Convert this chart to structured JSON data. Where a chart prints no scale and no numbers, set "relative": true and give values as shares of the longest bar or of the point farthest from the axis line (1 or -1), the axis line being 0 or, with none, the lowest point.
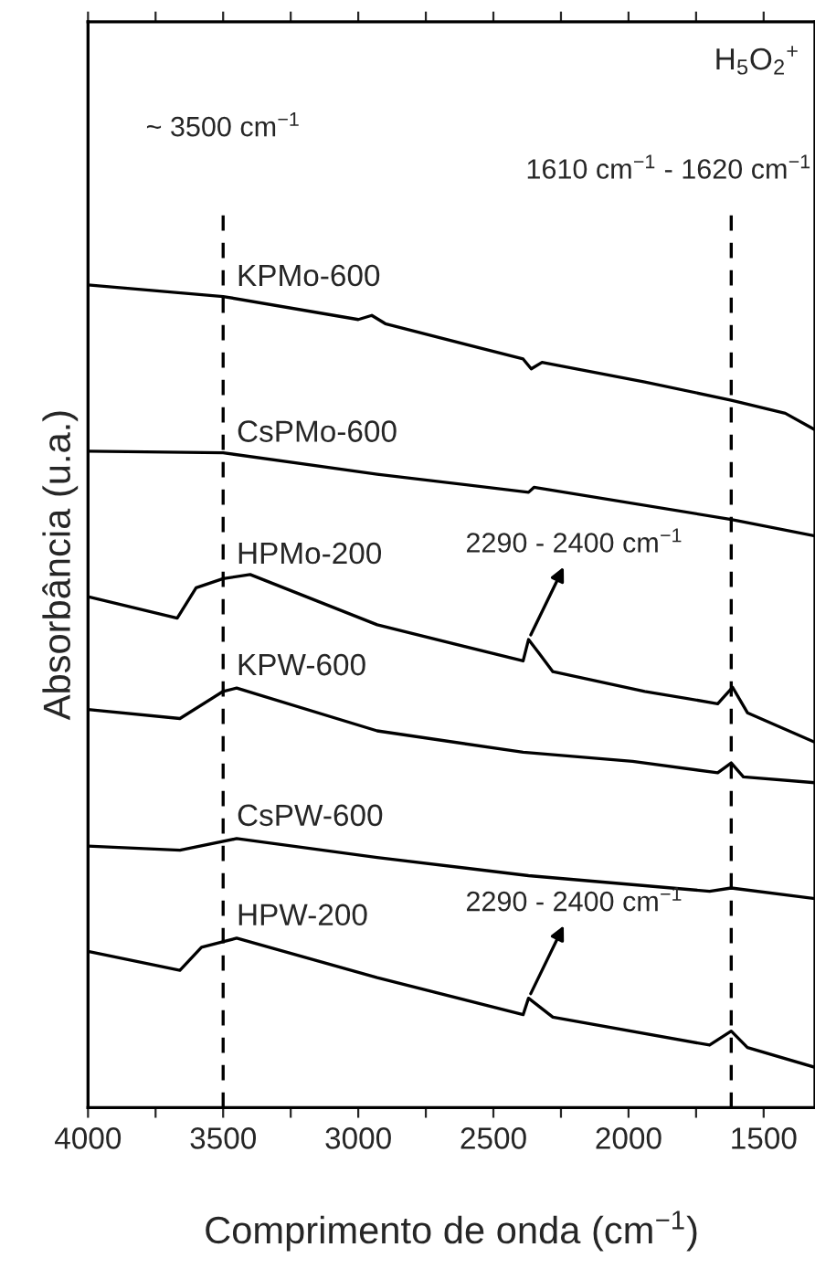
{
  "chart_data": {
    "type": "line",
    "relative": true,
    "xlabel": "Comprimento de onda (cm$^{−1}$)",
    "ylabel": "Absorbância (u.a.)",
    "xlim": [
      4000,
      1310
    ],
    "xticks": [
      4000,
      {
        "value": 3750,
        "label": null
      },
      3500,
      {
        "value": 3250,
        "label": null
      },
      3000,
      {
        "value": 2750,
        "label": null
      },
      2500,
      {
        "value": 2250,
        "label": null
      },
      2000,
      {
        "value": 1750,
        "label": null
      },
      1500
    ],
    "grid": false,
    "legend": false,
    "marker": "none",
    "line_style": "solid",
    "ref_lines": [
      {
        "axis": "x",
        "value": 3500,
        "label": "~ 3500 cm$^{−1}$",
        "color": "#000000",
        "line_style": "dashed"
      },
      {
        "axis": "x",
        "value": 1620,
        "label": "1610 cm$^{−1}$ - 1620 cm$^{−1}$",
        "color": "#000000",
        "line_style": "dashed"
      }
    ],
    "annotations": [
      "H$_{5}$O$_{2}$$^{+}$",
      {
        "text": "2290 - 2400 cm$^{−1}$",
        "x": 2370,
        "y": 0.569
      },
      {
        "text": "2290 - 2400 cm$^{−1}$",
        "x": 2370,
        "y": 0.133
      }
    ],
    "series": [
      {
        "name": "KPMo-600",
        "color": "#000000",
        "x": [
          4000,
          3500,
          3000,
          2950,
          2900,
          2390,
          2360,
          2320,
          1940,
          1620,
          1420,
          1310
        ],
        "values": [
          1.0,
          0.986,
          0.958,
          0.963,
          0.953,
          0.91,
          0.898,
          0.906,
          0.882,
          0.86,
          0.844,
          0.824
        ]
      },
      {
        "name": "CsPMo-600",
        "color": "#000000",
        "x": [
          4000,
          3500,
          2930,
          2370,
          2350,
          1620,
          1310
        ],
        "values": [
          0.798,
          0.796,
          0.77,
          0.748,
          0.754,
          0.715,
          0.695
        ]
      },
      {
        "name": "HPMo-200",
        "color": "#000000",
        "x": [
          4000,
          3670,
          3600,
          3500,
          3400,
          2930,
          2390,
          2370,
          2335,
          2280,
          1940,
          1670,
          1615,
          1560,
          1310
        ],
        "values": [
          0.621,
          0.595,
          0.632,
          0.643,
          0.648,
          0.587,
          0.543,
          0.569,
          0.554,
          0.53,
          0.506,
          0.491,
          0.511,
          0.48,
          0.444
        ]
      },
      {
        "name": "KPW-600",
        "color": "#000000",
        "x": [
          4000,
          3660,
          3500,
          3450,
          2930,
          2390,
          1985,
          1670,
          1620,
          1575,
          1310
        ],
        "values": [
          0.484,
          0.473,
          0.506,
          0.51,
          0.458,
          0.432,
          0.421,
          0.407,
          0.419,
          0.402,
          0.395
        ]
      },
      {
        "name": "CsPW-600",
        "color": "#000000",
        "x": [
          4000,
          3660,
          3450,
          2930,
          2370,
          1700,
          1620,
          1310
        ],
        "values": [
          0.318,
          0.313,
          0.327,
          0.304,
          0.282,
          0.263,
          0.267,
          0.254
        ]
      },
      {
        "name": "HPW-200",
        "color": "#000000",
        "x": [
          4000,
          3660,
          3580,
          3450,
          2930,
          2390,
          2370,
          2280,
          1700,
          1620,
          1560,
          1310
        ],
        "values": [
          0.19,
          0.167,
          0.195,
          0.206,
          0.158,
          0.113,
          0.133,
          0.11,
          0.076,
          0.093,
          0.073,
          0.049
        ]
      }
    ]
  }
}
